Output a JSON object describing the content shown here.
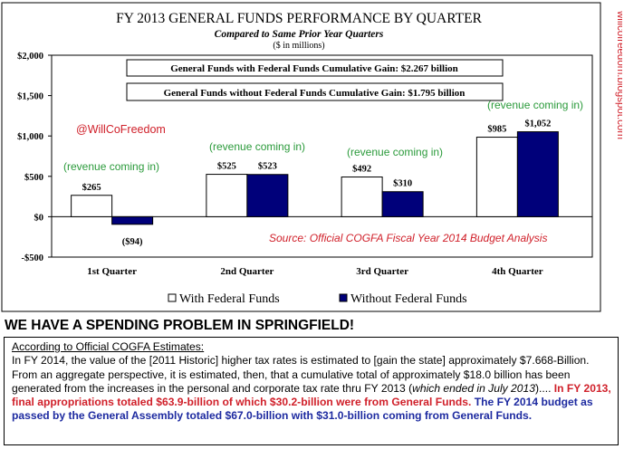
{
  "watermark_vertical": "willcofreedom.blogspot.com",
  "chart_data": {
    "type": "bar",
    "title": "FY 2013 GENERAL FUNDS PERFORMANCE BY QUARTER",
    "subtitle": "Compared to Same Prior Year Quarters",
    "units_note": "($ in millions)",
    "categories": [
      "1st Quarter",
      "2nd Quarter",
      "3rd Quarter",
      "4th Quarter"
    ],
    "series": [
      {
        "name": "With Federal Funds",
        "values": [
          265,
          525,
          492,
          985
        ],
        "labels": [
          "$265",
          "$525",
          "$492",
          "$985"
        ],
        "color": "#ffffff"
      },
      {
        "name": "Without Federal Funds",
        "values": [
          -94,
          523,
          310,
          1052
        ],
        "labels": [
          "($94)",
          "$523",
          "$310",
          "$1,052"
        ],
        "color": "#00007a"
      }
    ],
    "ylim": [
      -500,
      2000
    ],
    "yticks": [
      -500,
      0,
      500,
      1000,
      1500,
      2000
    ],
    "ytick_labels": [
      "-$500",
      "$0",
      "$500",
      "$1,000",
      "$1,500",
      "$2,000"
    ],
    "gain_boxes": [
      "General Funds with Federal Funds Cumulative Gain: $2.267 billion",
      "General Funds without Federal Funds Cumulative Gain: $1.795 billion"
    ],
    "annotations": {
      "handle": "@WillCoFreedom",
      "revenue_note": "(revenue coming in)",
      "source": "Source:  Official COGFA Fiscal Year 2014 Budget Analysis"
    }
  },
  "article": {
    "headline": "WE HAVE A SPENDING PROBLEM IN SPRINGFIELD!",
    "intro": "According to Official COGFA Estimates:",
    "para1_a": "In FY 2014, the value of the [2011 Historic] higher tax rates is estimated to [gain the state] approximately $7.668-Billion.  From an aggregate perspective, it is estimated, then, that a cumulative total of approximately $18.0 billion has been generated from the increases in the personal and corporate tax rate thru FY 2013 (",
    "para1_italic": "which ended in July 2013",
    "para1_b": ")....  ",
    "red_sentence": "In FY 2013, final appropriations totaled $63.9-billion of which $30.2-billion were from General Funds.",
    "blue_sentence": " The FY 2014 budget as passed by the General Assembly totaled $67.0-billion with $31.0-billion coming from General Funds."
  }
}
